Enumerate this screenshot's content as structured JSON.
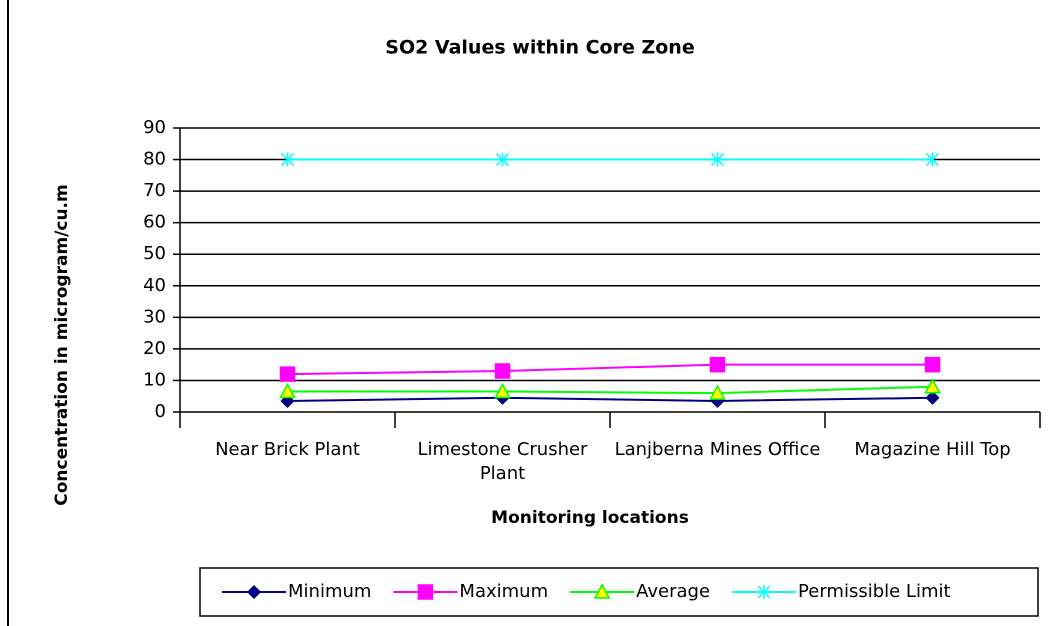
{
  "chart_data": {
    "type": "line",
    "title": "SO2 Values within Core Zone",
    "x_label": "Monitoring locations",
    "y_label": "Concentration in microgram/cu.m",
    "categories": [
      "Near Brick Plant",
      "Limestone Crusher Plant",
      "Lanjberna Mines Office",
      "Magazine Hill Top"
    ],
    "series": [
      {
        "name": "Minimum",
        "color": "#000080",
        "marker": "diamond",
        "marker_fill": "#000080",
        "values": [
          3.5,
          4.5,
          3.5,
          4.5
        ]
      },
      {
        "name": "Maximum",
        "color": "#ff00ff",
        "marker": "square",
        "marker_fill": "#ff00ff",
        "values": [
          12,
          13,
          15,
          15
        ]
      },
      {
        "name": "Average",
        "color": "#00ff00",
        "marker": "triangle",
        "marker_fill": "#ffff00",
        "values": [
          6.5,
          6.5,
          6,
          8
        ]
      },
      {
        "name": "Permissible Limit",
        "color": "#00ffff",
        "marker": "asterisk",
        "marker_fill": "#00ffff",
        "values": [
          80,
          80,
          80,
          80
        ]
      }
    ],
    "ylim": [
      0,
      90
    ],
    "yticks": [
      0,
      10,
      20,
      30,
      40,
      50,
      60,
      70,
      80,
      90
    ],
    "grid": true,
    "legend": "bottom"
  }
}
